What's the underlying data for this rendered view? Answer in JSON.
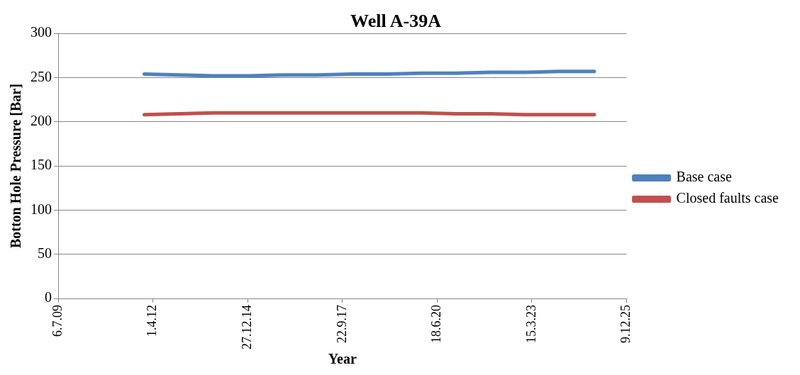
{
  "chart_data": {
    "type": "line",
    "title": "Well A-39A",
    "xlabel": "Year",
    "ylabel": "Botton Hole Pressure [Bar]",
    "x": [
      "2012-01-01",
      "2013-01-01",
      "2014-01-01",
      "2015-01-01",
      "2016-01-01",
      "2017-01-01",
      "2018-01-01",
      "2019-01-01",
      "2020-01-01",
      "2021-01-01",
      "2022-01-01",
      "2023-01-01",
      "2024-01-01",
      "2025-01-01"
    ],
    "series": [
      {
        "name": "Base case",
        "color": "#4f81bd",
        "values": [
          254,
          253,
          252,
          252,
          253,
          253,
          254,
          254,
          255,
          255,
          256,
          256,
          257,
          257
        ]
      },
      {
        "name": "Closed faults case",
        "color": "#c0504d",
        "values": [
          208,
          209,
          210,
          210,
          210,
          210,
          210,
          210,
          210,
          209,
          209,
          208,
          208,
          208
        ]
      }
    ],
    "xlim": [
      "2009-07-06",
      "2025-12-09"
    ],
    "xticks": [
      {
        "value": "2009-07-06",
        "label": "6.7.09"
      },
      {
        "value": "2012-04-01",
        "label": "1.4.12"
      },
      {
        "value": "2014-12-27",
        "label": "27.12.14"
      },
      {
        "value": "2017-09-22",
        "label": "22.9.17"
      },
      {
        "value": "2020-06-18",
        "label": "18.6.20"
      },
      {
        "value": "2023-03-15",
        "label": "15.3.23"
      },
      {
        "value": "2025-12-09",
        "label": "9.12.25"
      }
    ],
    "ylim": [
      0,
      300
    ],
    "yticks": [
      0,
      50,
      100,
      150,
      200,
      250,
      300
    ],
    "grid": "y",
    "legend": "right",
    "marker": "none",
    "line_style": "solid"
  }
}
